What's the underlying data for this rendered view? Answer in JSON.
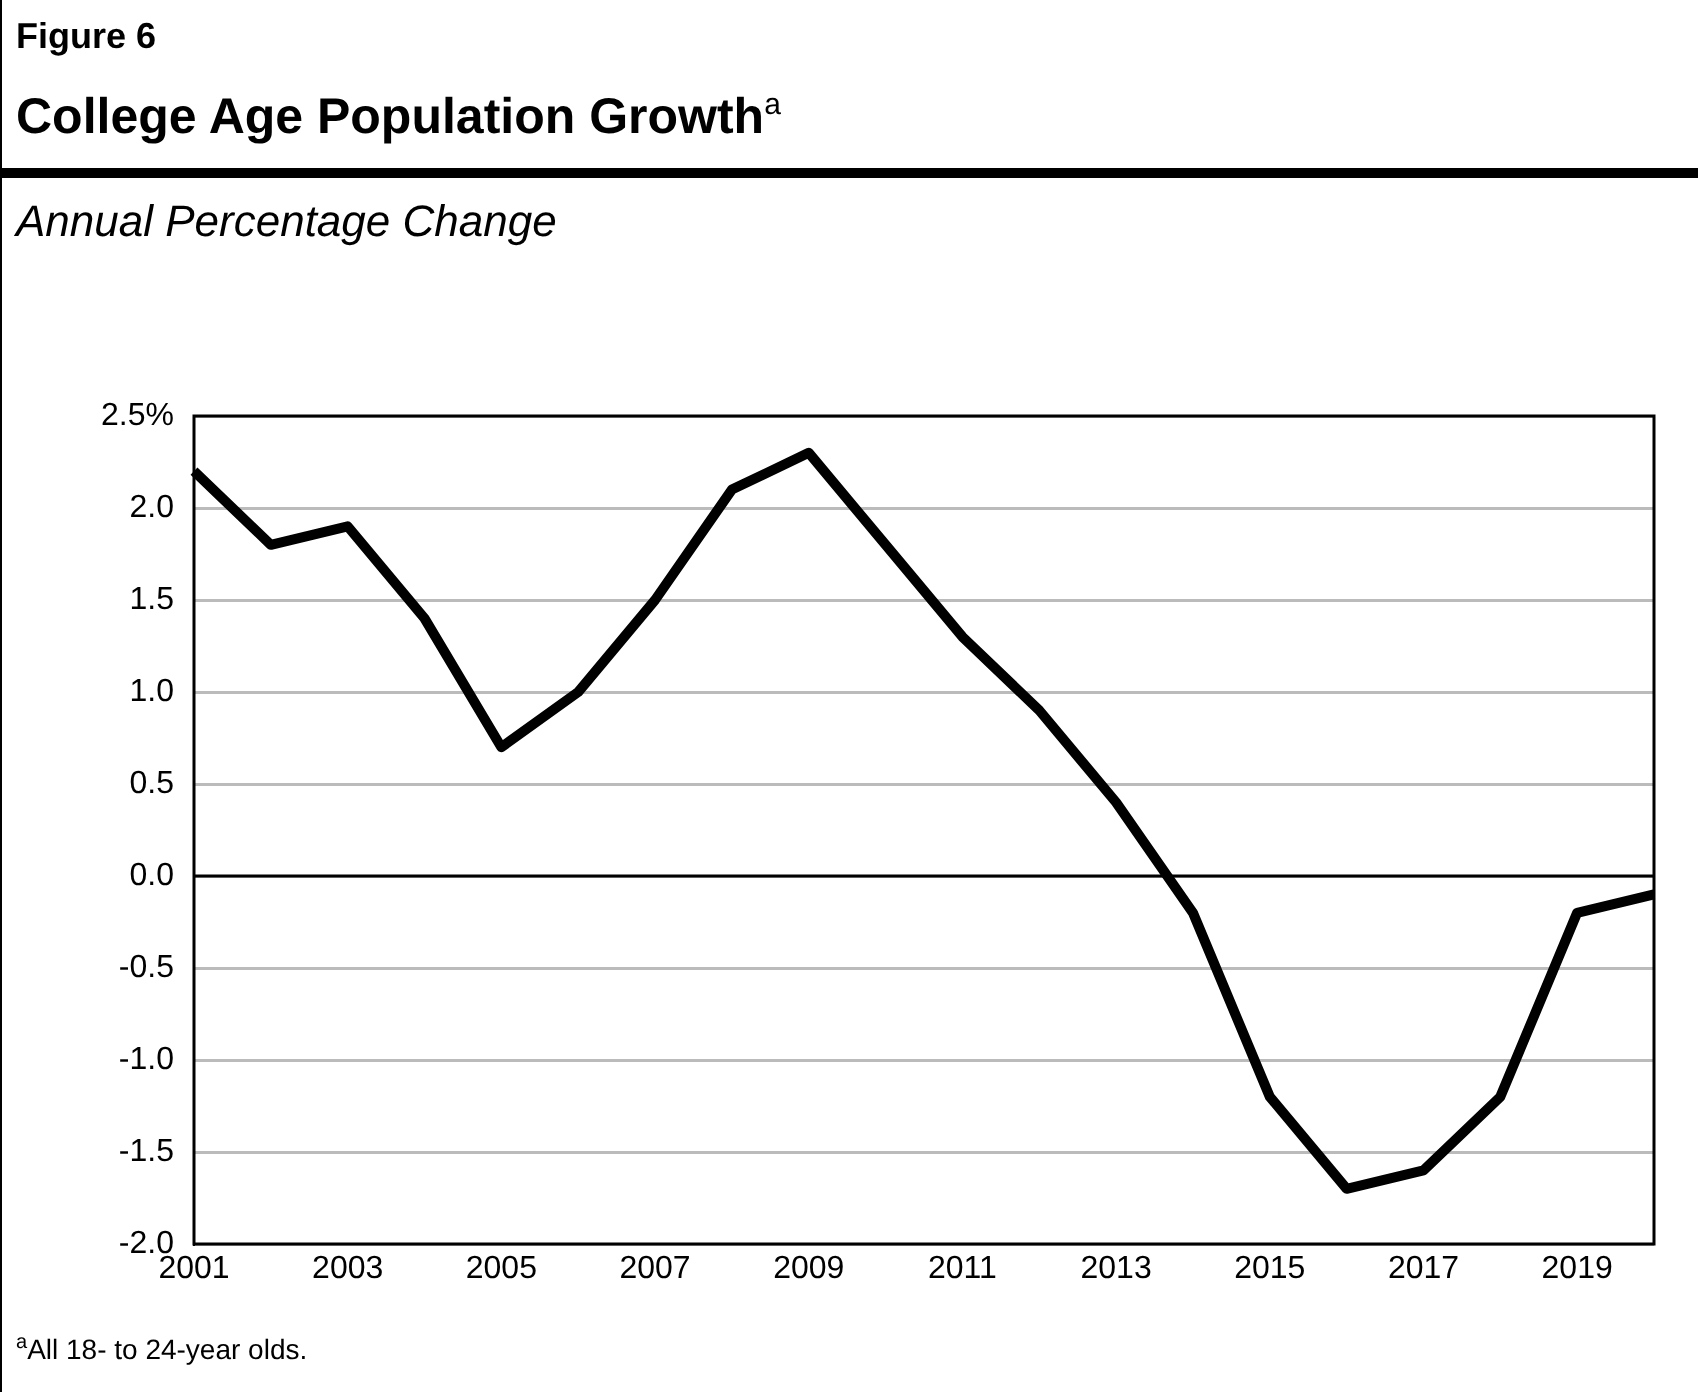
{
  "chart_data": {
    "type": "line",
    "title": "College Age Population Growth$^{a}$",
    "subtitle": "Annual Percentage Change",
    "annotations": [
      "Figure 6",
      "$^{a}$All 18- to 24-year olds."
    ],
    "x": [
      2001,
      2002,
      2003,
      2004,
      2005,
      2006,
      2007,
      2008,
      2009,
      2010,
      2011,
      2012,
      2013,
      2014,
      2015,
      2016,
      2017,
      2018,
      2019,
      2020
    ],
    "series": [
      {
        "color": "#000000",
        "values": [
          2.2,
          1.8,
          1.9,
          1.4,
          0.7,
          1.0,
          1.5,
          2.1,
          2.3,
          1.8,
          1.3,
          0.9,
          0.4,
          -0.2,
          -1.2,
          -1.7,
          -1.6,
          -1.2,
          -0.2,
          -0.1
        ]
      }
    ],
    "xlim": [
      2001,
      2020
    ],
    "xticks": [
      2001,
      2003,
      2005,
      2007,
      2009,
      2011,
      2013,
      2015,
      2017,
      2019
    ],
    "ylim": [
      -2,
      2.5
    ],
    "yticks": [
      {
        "value": -2,
        "label": "-2.0"
      },
      {
        "value": -1.5,
        "label": "-1.5"
      },
      {
        "value": -1,
        "label": "-1.0"
      },
      {
        "value": -0.5,
        "label": "-0.5"
      },
      {
        "value": 0,
        "label": "0.0"
      },
      {
        "value": 0.5,
        "label": "0.5"
      },
      {
        "value": 1,
        "label": "1.0"
      },
      {
        "value": 1.5,
        "label": "1.5"
      },
      {
        "value": 2,
        "label": "2.0"
      },
      {
        "value": 2.5,
        "label": "2.5%"
      }
    ],
    "ref_lines": [
      {
        "axis": "y",
        "value": 0,
        "color": "#000000"
      }
    ],
    "grid": "y",
    "legend": false,
    "marker": "none",
    "line_style": "solid"
  }
}
